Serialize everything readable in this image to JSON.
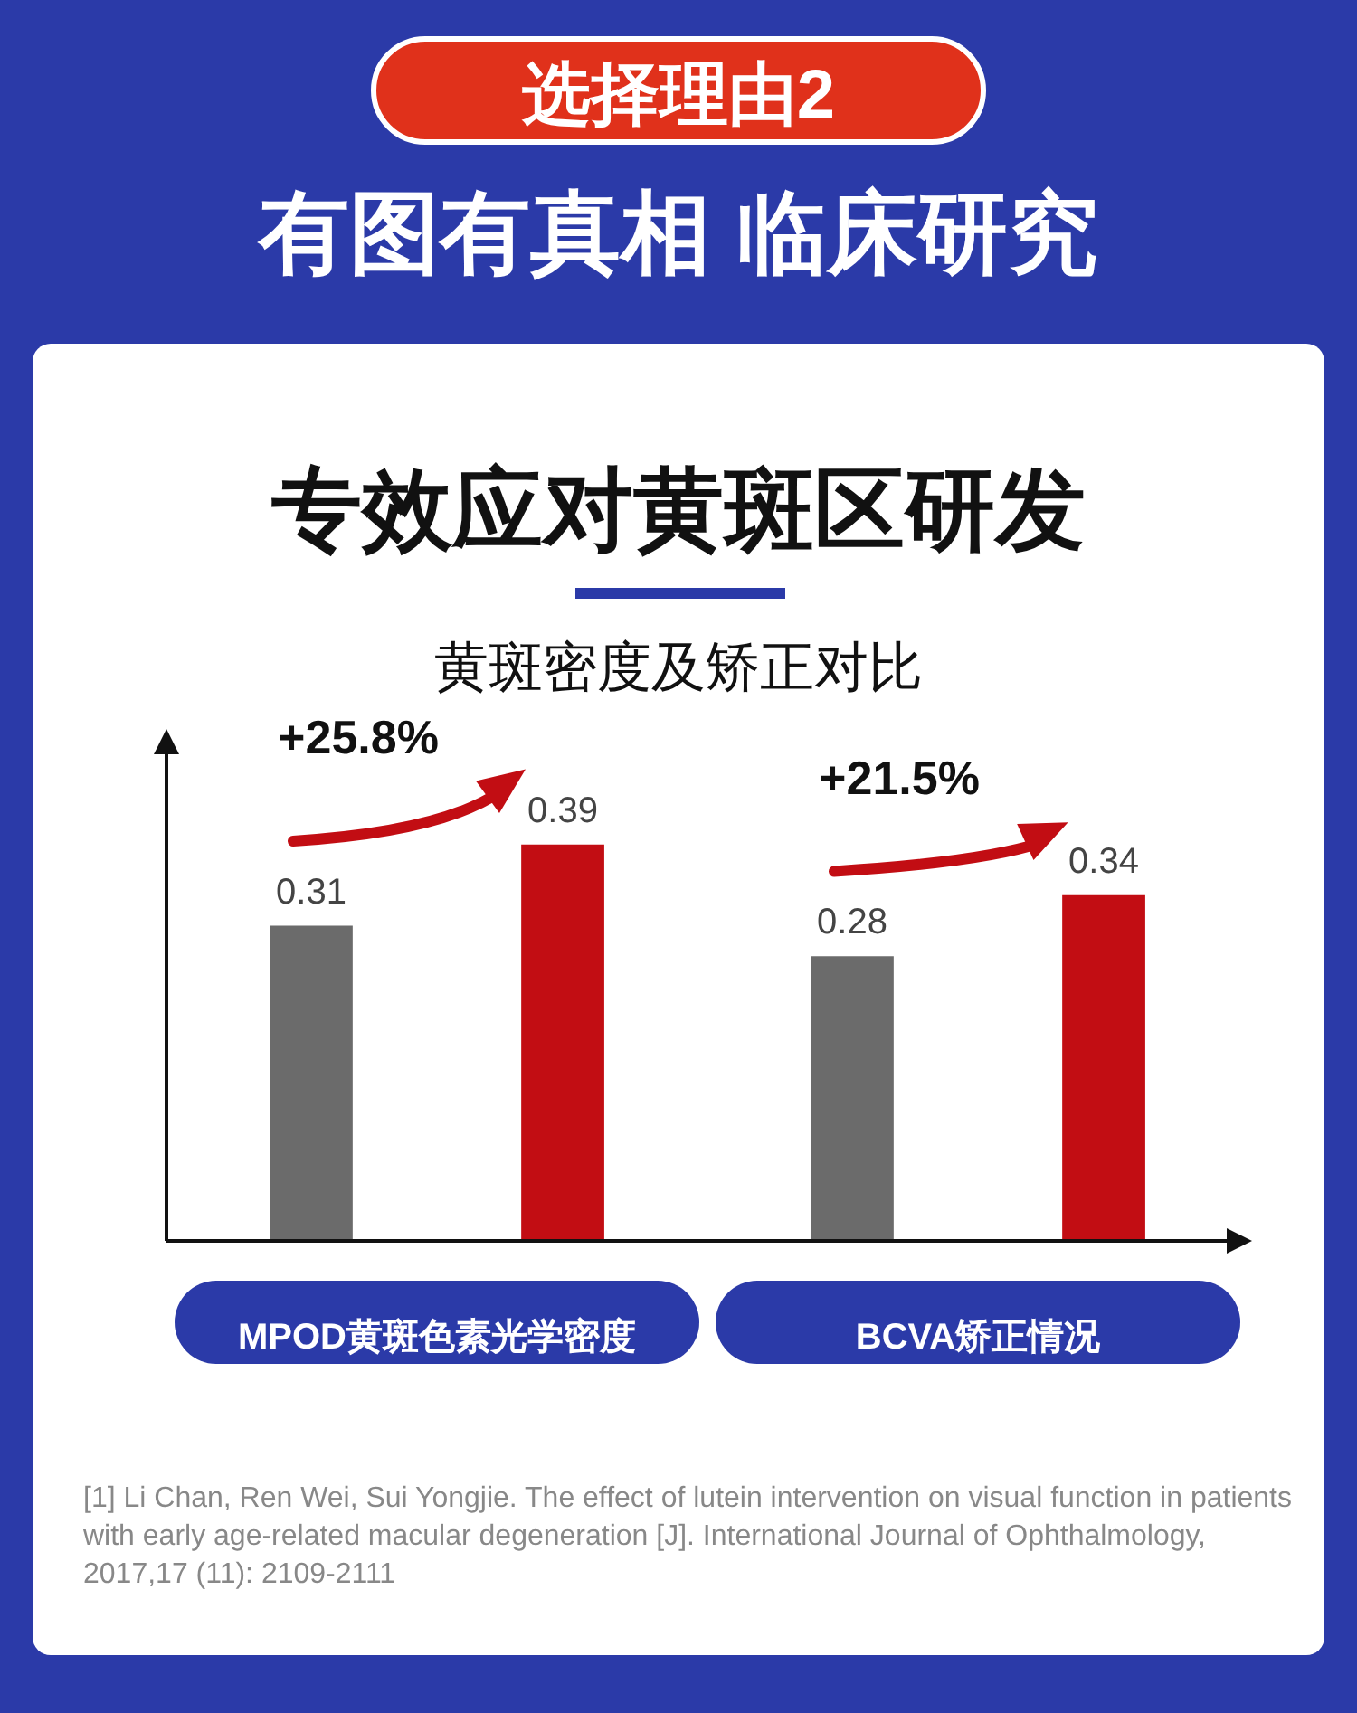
{
  "chart_data": {
    "type": "bar",
    "title": "专效应对黄斑区研发",
    "subtitle": "黄斑密度及矫正对比",
    "categories": [
      "MPOD黄斑色素光学密度",
      "BCVA矫正情况"
    ],
    "series": [
      {
        "color": "#6b6b6b",
        "values": [
          0.31,
          0.28
        ]
      },
      {
        "color": "#c20d13",
        "values": [
          0.39,
          0.34
        ]
      }
    ],
    "data_labels": true,
    "grid": false,
    "legend": false,
    "tick_labels": "x",
    "annotations": [
      "选择理由2",
      "有图有真相 临床研究",
      "+25.8%",
      "+21.5%",
      "[1] Li Chan, Ren Wei, Sui Yongjie. The effect of lutein intervention on visual function in patients with early age-related macular degeneration [J]. International Journal of Ophthalmology, 2017,17 (11): 2109-2111"
    ]
  }
}
